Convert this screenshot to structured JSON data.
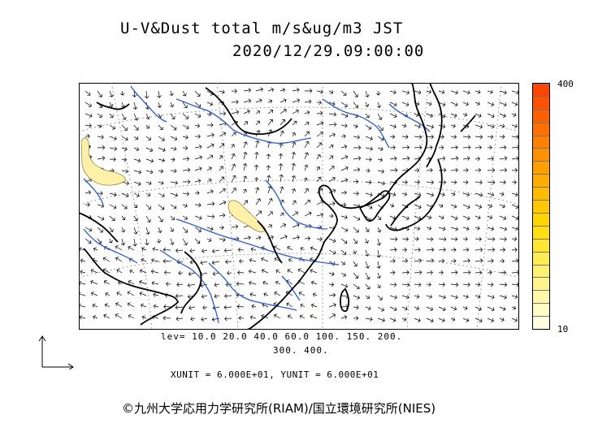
{
  "title_line1": "U-V&Dust total m/s&ug/m3 JST",
  "title_line2": "2020/12/29.09:00:00",
  "colorbar": {
    "max_label": "400",
    "min_label": "10",
    "colors": [
      "#fffde0",
      "#fffbc4",
      "#fff8a8",
      "#fff58c",
      "#fff170",
      "#ffec50",
      "#ffe630",
      "#ffdf10",
      "#ffd400",
      "#ffc800",
      "#ffbb00",
      "#ffad00",
      "#ff9f00",
      "#ff9000",
      "#ff8000",
      "#ff7000",
      "#ff6000",
      "#ff5200",
      "#ff4400"
    ]
  },
  "levels_line1": "lev= 10.0 20.0 40.0 60.0 100. 150. 200.",
  "levels_line2": "300. 400.",
  "units_line": "XUNIT = 6.000E+01, YUNIT = 6.000E+01",
  "credit": "©九州大学応用力学研究所(RIAM)/国立環境研究所(NIES)",
  "map": {
    "coastline_color": "#000000",
    "river_color": "#1e5bff",
    "grid_color": "#8a8a8a",
    "dust_fill": "#fff2a8",
    "dust_edge": "#9c8a40"
  }
}
